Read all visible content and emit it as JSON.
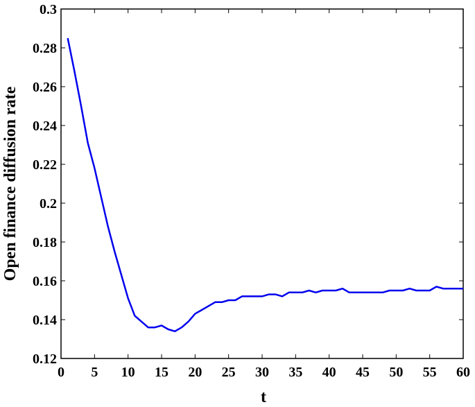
{
  "chart_data": {
    "type": "line",
    "xlabel": "t",
    "ylabel": "Open finance diffusion rate",
    "x": [
      1,
      2,
      3,
      4,
      5,
      6,
      7,
      8,
      9,
      10,
      11,
      12,
      13,
      14,
      15,
      16,
      17,
      18,
      19,
      20,
      21,
      22,
      23,
      24,
      25,
      26,
      27,
      28,
      29,
      30,
      31,
      32,
      33,
      34,
      35,
      36,
      37,
      38,
      39,
      40,
      41,
      42,
      43,
      44,
      45,
      46,
      47,
      48,
      49,
      50,
      51,
      52,
      53,
      54,
      55,
      56,
      57,
      58,
      59,
      60
    ],
    "series": [
      {
        "color": "#0000ee",
        "values": [
          0.285,
          0.268,
          0.25,
          0.231,
          0.218,
          0.203,
          0.188,
          0.175,
          0.163,
          0.151,
          0.142,
          0.139,
          0.136,
          0.136,
          0.137,
          0.135,
          0.134,
          0.136,
          0.139,
          0.143,
          0.145,
          0.147,
          0.149,
          0.149,
          0.15,
          0.15,
          0.152,
          0.152,
          0.152,
          0.152,
          0.153,
          0.153,
          0.152,
          0.154,
          0.154,
          0.154,
          0.155,
          0.154,
          0.155,
          0.155,
          0.155,
          0.156,
          0.154,
          0.154,
          0.154,
          0.154,
          0.154,
          0.154,
          0.155,
          0.155,
          0.155,
          0.156,
          0.155,
          0.155,
          0.155,
          0.157,
          0.156,
          0.156,
          0.156,
          0.156
        ]
      }
    ],
    "xlim": [
      0,
      60
    ],
    "xticks": [
      0,
      5,
      10,
      15,
      20,
      25,
      30,
      35,
      40,
      45,
      50,
      55,
      60
    ],
    "ylim": [
      0.12,
      0.3
    ],
    "yticks": [
      0.12,
      0.14,
      0.16,
      0.18,
      0.2,
      0.22,
      0.24,
      0.26,
      0.28,
      0.3
    ]
  }
}
